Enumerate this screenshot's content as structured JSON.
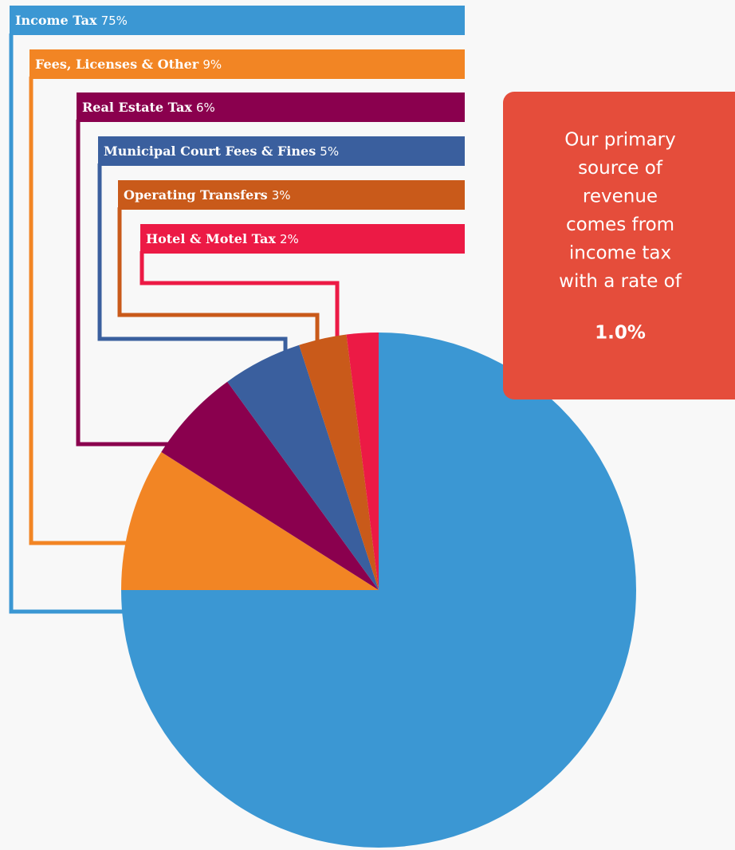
{
  "chart_data": {
    "type": "pie",
    "categories": [
      "Income Tax",
      "Fees, Licenses & Other",
      "Real Estate Tax",
      "Municipal Court Fees & Fines",
      "Operating Transfers",
      "Hotel & Motel Tax"
    ],
    "values": [
      75,
      9,
      6,
      5,
      3,
      2
    ],
    "value_labels": [
      "75%",
      "9%",
      "6%",
      "5%",
      "3%",
      "2%"
    ],
    "colors": [
      "#3b97d3",
      "#f28524",
      "#8a004e",
      "#3a5f9e",
      "#c95a1a",
      "#ec1a45"
    ],
    "note_lines": [
      "Our primary",
      "source of",
      "revenue",
      "comes from",
      "income tax",
      "with a rate of"
    ],
    "note_figure": "1.0%",
    "note_color": "#e54d3b"
  }
}
